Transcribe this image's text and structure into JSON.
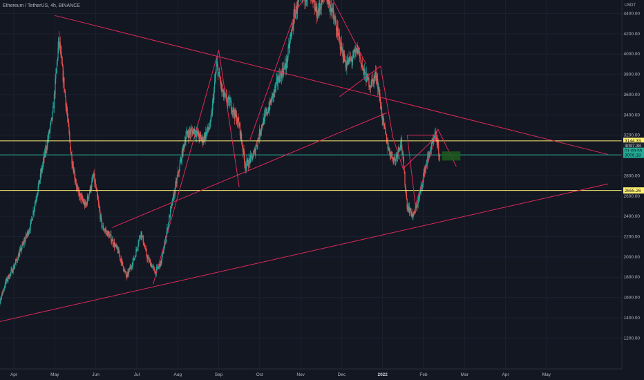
{
  "header": {
    "title": "Ethereum / TetherUS, 4h, BINANCE",
    "currency": "USDT"
  },
  "chart_data": {
    "type": "candlestick",
    "ylim": [
      1100,
      4560
    ],
    "y_ticks": [
      "1200.00",
      "1400.00",
      "1600.00",
      "1800.00",
      "2000.00",
      "2200.00",
      "2400.00",
      "2600.00",
      "2800.00",
      "3000.00",
      "3200.00",
      "3400.00",
      "3600.00",
      "3800.00",
      "4000.00",
      "4200.00",
      "4400.00"
    ],
    "x_ticks": [
      {
        "label": "Apr",
        "t": 0.5
      },
      {
        "label": "May",
        "t": 1.5
      },
      {
        "label": "Jun",
        "t": 2.5
      },
      {
        "label": "Jul",
        "t": 3.5
      },
      {
        "label": "Aug",
        "t": 4.5
      },
      {
        "label": "Sep",
        "t": 5.5
      },
      {
        "label": "Oct",
        "t": 6.5
      },
      {
        "label": "Nov",
        "t": 7.5
      },
      {
        "label": "Dec",
        "t": 8.5
      },
      {
        "label": "2022",
        "t": 9.5,
        "bold": true
      },
      {
        "label": "Feb",
        "t": 10.5
      },
      {
        "label": "Mar",
        "t": 11.5
      },
      {
        "label": "Apr",
        "t": 12.5
      },
      {
        "label": "May",
        "t": 13.5
      }
    ],
    "series": [
      {
        "points": [
          [
            0.0,
            1650
          ],
          [
            0.15,
            1550
          ],
          [
            0.3,
            1750
          ],
          [
            0.5,
            1900
          ],
          [
            0.7,
            2100
          ],
          [
            0.9,
            2300
          ],
          [
            1.1,
            2700
          ],
          [
            1.3,
            3100
          ],
          [
            1.45,
            3400
          ],
          [
            1.6,
            4150
          ],
          [
            1.75,
            3600
          ],
          [
            1.9,
            3000
          ],
          [
            2.05,
            2650
          ],
          [
            2.25,
            2500
          ],
          [
            2.45,
            2800
          ],
          [
            2.65,
            2300
          ],
          [
            2.85,
            2200
          ],
          [
            3.05,
            2050
          ],
          [
            3.25,
            1800
          ],
          [
            3.45,
            2000
          ],
          [
            3.6,
            2250
          ],
          [
            3.75,
            2000
          ],
          [
            3.95,
            1850
          ],
          [
            4.1,
            1950
          ],
          [
            4.3,
            2400
          ],
          [
            4.5,
            2800
          ],
          [
            4.7,
            3200
          ],
          [
            4.9,
            3250
          ],
          [
            5.1,
            3150
          ],
          [
            5.3,
            3300
          ],
          [
            5.45,
            3900
          ],
          [
            5.6,
            3600
          ],
          [
            5.8,
            3500
          ],
          [
            6.0,
            3300
          ],
          [
            6.15,
            2900
          ],
          [
            6.35,
            3000
          ],
          [
            6.55,
            3300
          ],
          [
            6.75,
            3500
          ],
          [
            6.95,
            3750
          ],
          [
            7.15,
            3900
          ],
          [
            7.35,
            4400
          ],
          [
            7.5,
            4550
          ],
          [
            7.7,
            4600
          ],
          [
            7.9,
            4400
          ],
          [
            8.1,
            4600
          ],
          [
            8.25,
            4450
          ],
          [
            8.4,
            4200
          ],
          [
            8.6,
            3900
          ],
          [
            8.75,
            3950
          ],
          [
            8.9,
            4050
          ],
          [
            9.05,
            3800
          ],
          [
            9.2,
            3700
          ],
          [
            9.35,
            3800
          ],
          [
            9.5,
            3350
          ],
          [
            9.65,
            3050
          ],
          [
            9.8,
            2950
          ],
          [
            9.95,
            3150
          ],
          [
            10.1,
            2500
          ],
          [
            10.25,
            2400
          ],
          [
            10.4,
            2600
          ],
          [
            10.55,
            2900
          ],
          [
            10.7,
            3100
          ],
          [
            10.8,
            3200
          ],
          [
            10.9,
            2950
          ]
        ]
      }
    ],
    "horizontal_lines": [
      {
        "price": 3144.33,
        "color": "#fff170"
      },
      {
        "price": 3006.18,
        "color": "#22ab94"
      },
      {
        "price": 2655.26,
        "color": "#fff170"
      }
    ],
    "trend_lines": [
      {
        "from": [
          1.5,
          4380
        ],
        "to": [
          15,
          3010
        ]
      },
      {
        "from": [
          -0.2,
          1330
        ],
        "to": [
          15,
          2720
        ]
      },
      {
        "from": [
          2.9,
          2290
        ],
        "to": [
          9.6,
          3420
        ]
      },
      {
        "from": [
          3.9,
          1730
        ],
        "to": [
          5.5,
          4040
        ]
      },
      {
        "from": [
          5.5,
          4040
        ],
        "to": [
          6.0,
          2690
        ]
      },
      {
        "from": [
          6.25,
          3140
        ],
        "to": [
          7.4,
          4440
        ]
      },
      {
        "from": [
          7.4,
          4440
        ],
        "to": [
          8.0,
          4760
        ]
      },
      {
        "from": [
          8.0,
          4760
        ],
        "to": [
          9.1,
          3900
        ]
      },
      {
        "from": [
          8.45,
          3580
        ],
        "to": [
          9.45,
          3880
        ]
      },
      {
        "from": [
          9.45,
          3880
        ],
        "to": [
          9.75,
          3180
        ]
      },
      {
        "from": [
          9.75,
          3180
        ],
        "to": [
          10.0,
          2870
        ]
      },
      {
        "from": [
          10.0,
          2870
        ],
        "to": [
          10.85,
          3200
        ]
      },
      {
        "from": [
          10.1,
          3200
        ],
        "to": [
          10.85,
          3200
        ]
      },
      {
        "from": [
          10.1,
          3200
        ],
        "to": [
          10.3,
          2510
        ]
      },
      {
        "from": [
          10.3,
          2510
        ],
        "to": [
          10.85,
          3260
        ]
      },
      {
        "from": [
          10.85,
          3260
        ],
        "to": [
          11.3,
          2890
        ]
      }
    ],
    "projection_box": {
      "t0": 10.95,
      "t1": 11.4,
      "p0": 2950,
      "p1": 3040,
      "color": "#1e5b1e"
    },
    "price_badges": [
      {
        "text": "3144.33",
        "price": 3144.33,
        "bg": "#fff170",
        "fg": "#131722"
      },
      {
        "text": "3097.38",
        "price": 3097.38,
        "bg": "#1e222d",
        "fg": "#d1d4dc"
      },
      {
        "text": "01:09:55",
        "price": 3047,
        "bg": "#22ab94",
        "fg": "#131722"
      },
      {
        "text": "3006.18",
        "price": 3006.18,
        "bg": "#22ab94",
        "fg": "#131722"
      },
      {
        "text": "2655.26",
        "price": 2655.26,
        "bg": "#fff170",
        "fg": "#131722"
      }
    ],
    "colors": {
      "up": "#26a69a",
      "down": "#ef5350",
      "trend": "#e0295a",
      "background": "#131722",
      "axis": "#2a2e39"
    }
  }
}
